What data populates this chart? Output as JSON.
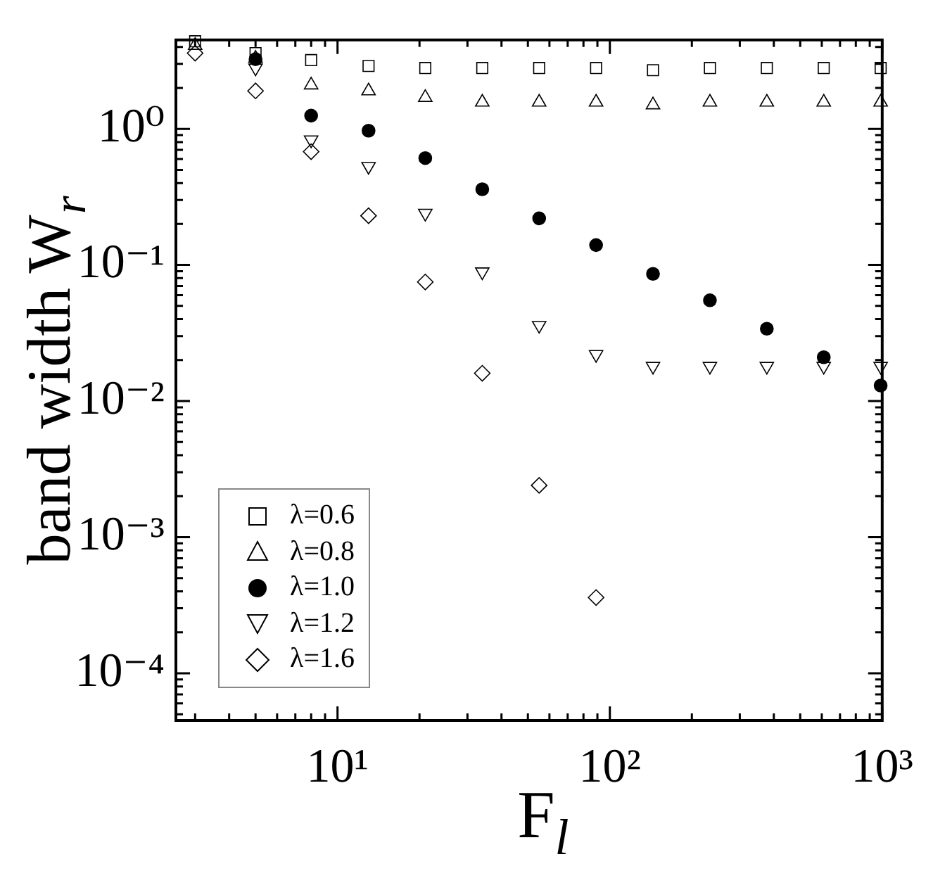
{
  "chart_data": {
    "type": "scatter",
    "xlabel": "F$_{l}$",
    "ylabel": "band width W$_{r}$",
    "log": "xy",
    "grid": false,
    "legend": "bottom left",
    "x": [
      3,
      5,
      8,
      13,
      21,
      34,
      55,
      89,
      144,
      233,
      377,
      610,
      987
    ],
    "xlim": [
      2.55,
      1000
    ],
    "ylim": [
      4.5e-05,
      4.5
    ],
    "xticks": [
      {
        "value": 10,
        "label": "10¹"
      },
      {
        "value": 100,
        "label": "10²"
      },
      {
        "value": 1000,
        "label": "10³"
      }
    ],
    "yticks": [
      {
        "value": 0.0001,
        "label": "10⁻⁴"
      },
      {
        "value": 0.001,
        "label": "10⁻³"
      },
      {
        "value": 0.01,
        "label": "10⁻²"
      },
      {
        "value": 0.1,
        "label": "10⁻¹"
      },
      {
        "value": 1,
        "label": "10⁰"
      }
    ],
    "series": [
      {
        "name": "λ=0.6",
        "color": "#000000",
        "marker": "square",
        "values": [
          4.4,
          3.6,
          3.2,
          2.9,
          2.8,
          2.8,
          2.8,
          2.8,
          2.7,
          2.8,
          2.8,
          2.8,
          2.8
        ]
      },
      {
        "name": "λ=0.8",
        "color": "#000000",
        "marker": "triangle",
        "values": [
          4.1,
          3.3,
          2.1,
          1.9,
          1.7,
          1.57,
          1.57,
          1.57,
          1.5,
          1.57,
          1.57,
          1.57,
          1.57
        ]
      },
      {
        "name": "λ=1.0",
        "color": "#000000",
        "marker": "circle",
        "values": [
          null,
          3.25,
          1.25,
          0.97,
          0.61,
          0.36,
          0.22,
          0.14,
          0.086,
          0.055,
          0.034,
          0.021,
          0.013
        ]
      },
      {
        "name": "λ=1.2",
        "color": "#000000",
        "marker": "triangle-down",
        "values": [
          null,
          2.8,
          0.83,
          0.53,
          0.24,
          0.089,
          0.036,
          0.022,
          0.018,
          0.018,
          0.018,
          0.018,
          0.018
        ]
      },
      {
        "name": "λ=1.6",
        "color": "#000000",
        "marker": "diamond",
        "values": [
          3.6,
          1.9,
          0.68,
          0.23,
          0.075,
          0.016,
          0.0024,
          0.00036,
          null,
          null,
          null,
          null,
          null
        ]
      }
    ]
  }
}
